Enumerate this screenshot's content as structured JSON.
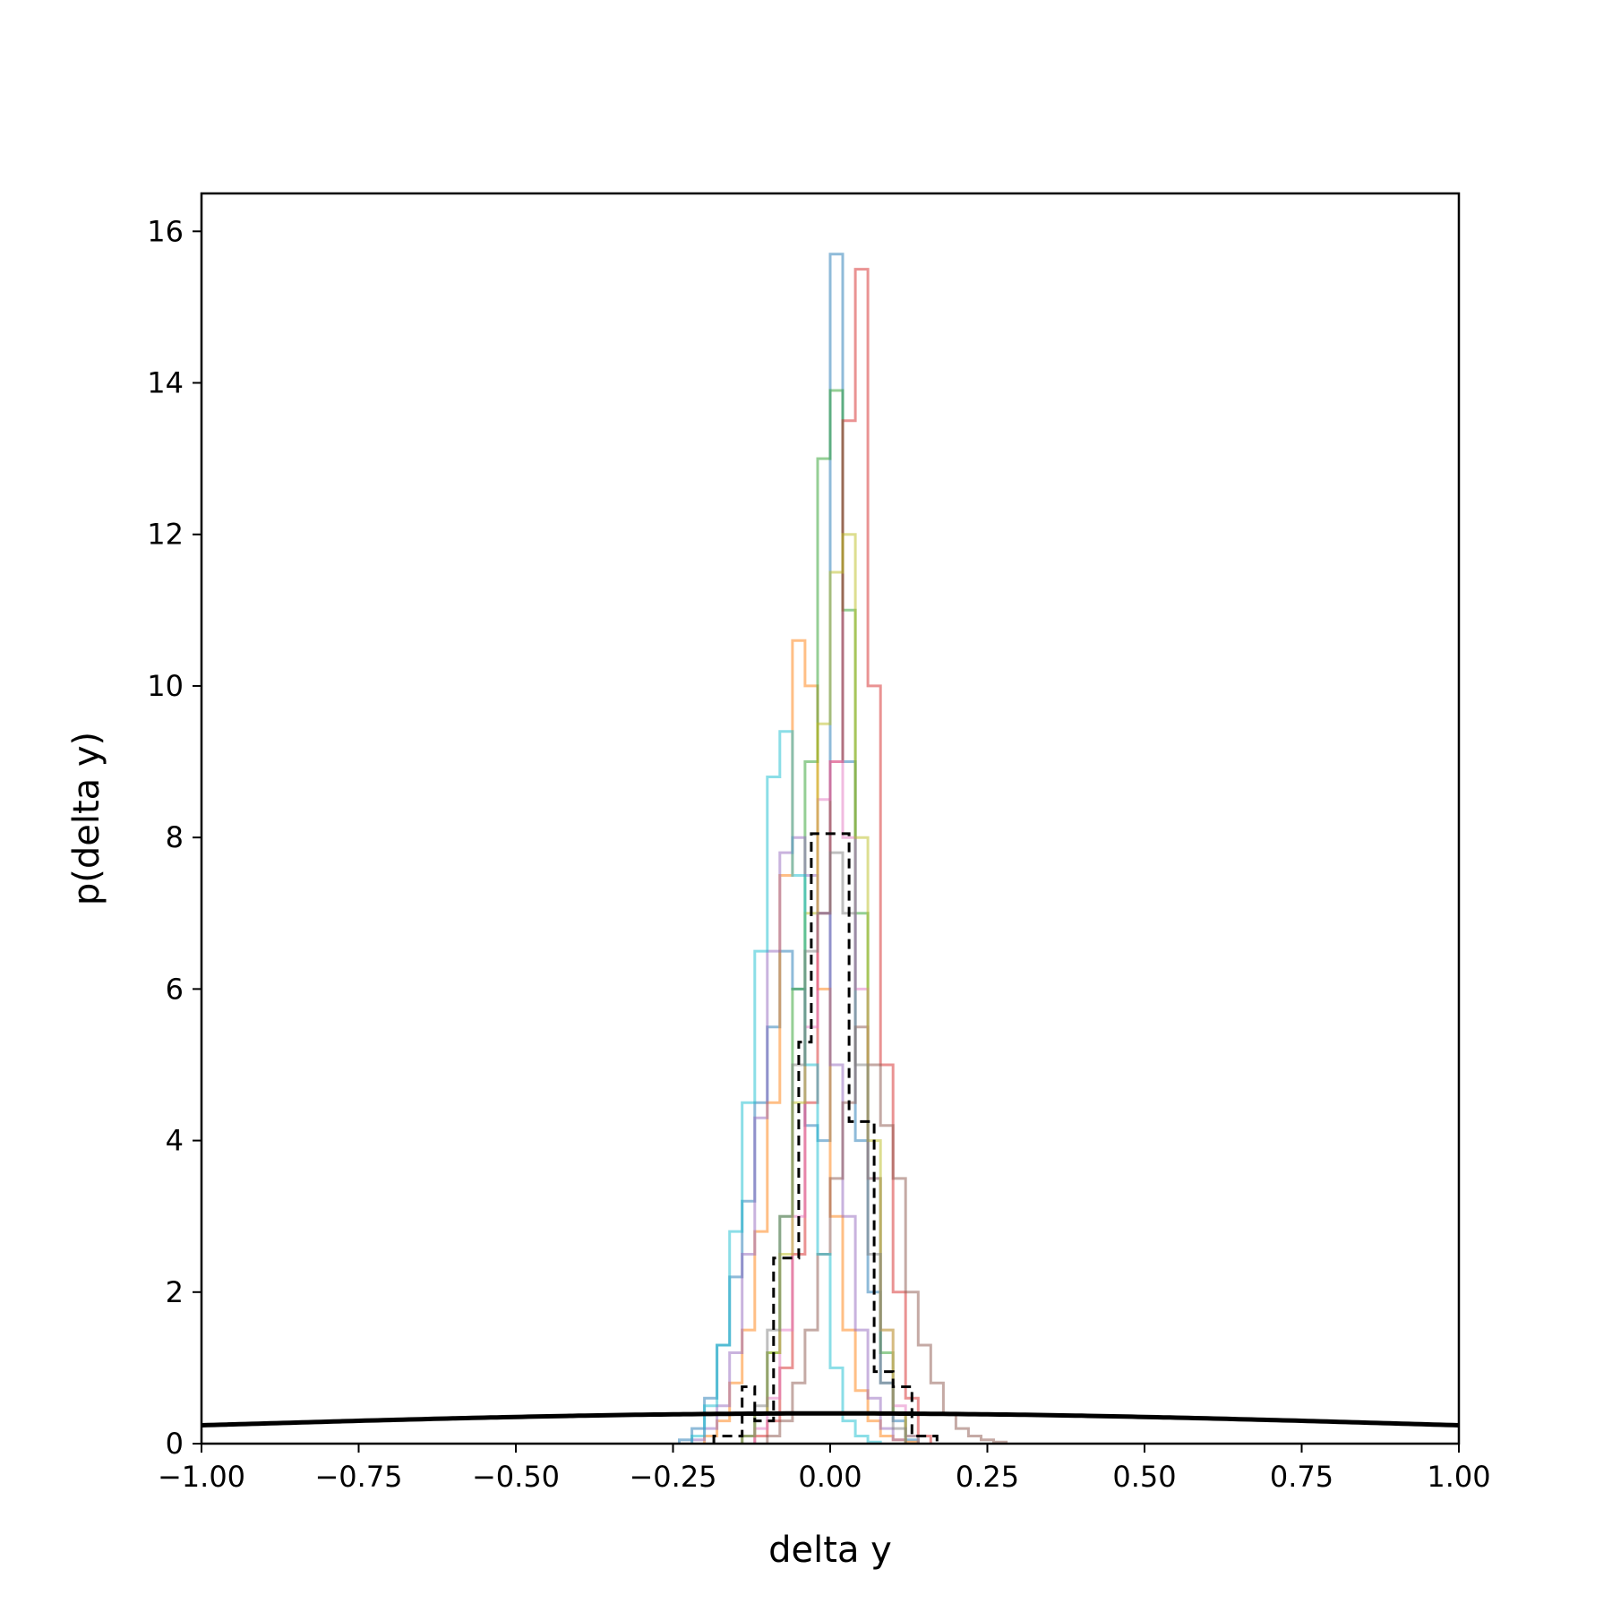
{
  "chart_data": {
    "type": "histogram",
    "xlabel": "delta y",
    "ylabel": "p(delta y)",
    "xlim": [
      -1.0,
      1.0
    ],
    "ylim": [
      0,
      16.5
    ],
    "x_ticks": [
      -1.0,
      -0.75,
      -0.5,
      -0.25,
      0.0,
      0.25,
      0.5,
      0.75,
      1.0
    ],
    "x_tick_labels": [
      "−1.00",
      "−0.75",
      "−0.50",
      "−0.25",
      "0.00",
      "0.25",
      "0.50",
      "0.75",
      "1.00"
    ],
    "y_ticks": [
      0,
      2,
      4,
      6,
      8,
      10,
      12,
      14,
      16
    ],
    "y_tick_labels": [
      "0",
      "2",
      "4",
      "6",
      "8",
      "10",
      "12",
      "14",
      "16"
    ],
    "grid": false,
    "legend": "none",
    "series": [
      {
        "color": "#1f77b4",
        "opacity": 0.5,
        "edges": [
          -0.24,
          -0.22,
          -0.2,
          -0.18,
          -0.16,
          -0.14,
          -0.12,
          -0.1,
          -0.08,
          -0.06,
          -0.04,
          -0.02,
          0.0,
          0.02,
          0.04,
          0.06,
          0.08,
          0.1,
          0.12,
          0.14
        ],
        "values": [
          0.05,
          0.2,
          0.6,
          1.3,
          2.2,
          3.2,
          4.5,
          5.5,
          6.5,
          6.0,
          4.2,
          4.0,
          15.7,
          9.0,
          4.0,
          2.0,
          0.8,
          0.3,
          0.05
        ]
      },
      {
        "color": "#ff7f0e",
        "opacity": 0.5,
        "edges": [
          -0.2,
          -0.18,
          -0.16,
          -0.14,
          -0.12,
          -0.1,
          -0.08,
          -0.06,
          -0.04,
          -0.02,
          0.0,
          0.02,
          0.04,
          0.06,
          0.08,
          0.1,
          0.12,
          0.14
        ],
        "values": [
          0.1,
          0.3,
          0.8,
          1.5,
          2.8,
          4.5,
          7.5,
          10.6,
          10.0,
          6.0,
          3.0,
          1.5,
          0.7,
          0.3,
          0.1,
          0.05,
          0.02
        ]
      },
      {
        "color": "#2ca02c",
        "opacity": 0.5,
        "edges": [
          -0.14,
          -0.12,
          -0.1,
          -0.08,
          -0.06,
          -0.04,
          -0.02,
          0.0,
          0.02,
          0.04,
          0.06,
          0.08,
          0.1,
          0.12,
          0.14
        ],
        "values": [
          0.1,
          0.4,
          1.2,
          3.0,
          6.0,
          9.0,
          13.0,
          13.9,
          11.0,
          7.0,
          3.5,
          1.2,
          0.4,
          0.1
        ]
      },
      {
        "color": "#d62728",
        "opacity": 0.5,
        "edges": [
          -0.12,
          -0.1,
          -0.08,
          -0.06,
          -0.04,
          -0.02,
          0.0,
          0.02,
          0.04,
          0.06,
          0.08,
          0.1,
          0.12,
          0.14,
          0.16
        ],
        "values": [
          0.1,
          0.3,
          1.0,
          2.5,
          4.5,
          7.0,
          9.0,
          13.5,
          15.5,
          10.0,
          5.0,
          2.0,
          0.6,
          0.1
        ]
      },
      {
        "color": "#9467bd",
        "opacity": 0.5,
        "edges": [
          -0.22,
          -0.2,
          -0.18,
          -0.16,
          -0.14,
          -0.12,
          -0.1,
          -0.08,
          -0.06,
          -0.04,
          -0.02,
          0.0,
          0.02,
          0.04,
          0.06,
          0.08,
          0.1,
          0.12
        ],
        "values": [
          0.05,
          0.2,
          0.5,
          1.2,
          2.5,
          4.3,
          6.5,
          7.8,
          8.0,
          7.5,
          7.0,
          5.0,
          3.0,
          1.5,
          0.6,
          0.2,
          0.05
        ]
      },
      {
        "color": "#8c564b",
        "opacity": 0.5,
        "edges": [
          -0.1,
          -0.08,
          -0.06,
          -0.04,
          -0.02,
          0.0,
          0.02,
          0.04,
          0.06,
          0.08,
          0.1,
          0.12,
          0.14,
          0.16,
          0.18,
          0.2,
          0.22,
          0.24,
          0.26,
          0.28
        ],
        "values": [
          0.1,
          0.3,
          0.8,
          1.5,
          2.5,
          3.5,
          4.5,
          5.5,
          5.0,
          4.2,
          3.5,
          2.0,
          1.3,
          0.8,
          0.4,
          0.2,
          0.1,
          0.05,
          0.02
        ]
      },
      {
        "color": "#e377c2",
        "opacity": 0.5,
        "edges": [
          -0.12,
          -0.1,
          -0.08,
          -0.06,
          -0.04,
          -0.02,
          0.0,
          0.02,
          0.04,
          0.06,
          0.08,
          0.1,
          0.12,
          0.14
        ],
        "values": [
          0.2,
          0.6,
          1.5,
          3.0,
          5.5,
          8.5,
          9.0,
          8.0,
          6.0,
          3.5,
          1.5,
          0.5,
          0.1
        ]
      },
      {
        "color": "#bcbd22",
        "opacity": 0.5,
        "edges": [
          -0.14,
          -0.12,
          -0.1,
          -0.08,
          -0.06,
          -0.04,
          -0.02,
          0.0,
          0.02,
          0.04,
          0.06,
          0.08,
          0.1,
          0.12
        ],
        "values": [
          0.1,
          0.4,
          1.2,
          2.5,
          4.5,
          7.0,
          9.5,
          11.5,
          12.0,
          8.0,
          4.0,
          1.5,
          0.4
        ]
      },
      {
        "color": "#17becf",
        "opacity": 0.5,
        "edges": [
          -0.22,
          -0.2,
          -0.18,
          -0.16,
          -0.14,
          -0.12,
          -0.1,
          -0.08,
          -0.06,
          -0.04,
          -0.02,
          0.0,
          0.02,
          0.04,
          0.06,
          0.08
        ],
        "values": [
          0.1,
          0.5,
          1.3,
          2.8,
          4.5,
          6.5,
          8.8,
          9.4,
          7.5,
          5.0,
          2.5,
          1.0,
          0.3,
          0.1,
          0.02
        ]
      },
      {
        "color": "#7f7f7f",
        "opacity": 0.5,
        "edges": [
          -0.14,
          -0.12,
          -0.1,
          -0.08,
          -0.06,
          -0.04,
          -0.02,
          0.0,
          0.02,
          0.04,
          0.06,
          0.08,
          0.1,
          0.12
        ],
        "values": [
          0.1,
          0.5,
          1.5,
          3.0,
          5.0,
          6.5,
          7.0,
          7.8,
          7.0,
          5.0,
          2.5,
          0.8,
          0.2
        ]
      }
    ],
    "dashed_series": {
      "color": "#000000",
      "edges": [
        -0.185,
        -0.14,
        -0.12,
        -0.09,
        -0.05,
        -0.03,
        -0.01,
        0.03,
        0.07,
        0.1,
        0.13,
        0.17
      ],
      "values": [
        0.1,
        0.75,
        0.3,
        2.45,
        5.3,
        8.05,
        8.05,
        4.25,
        0.95,
        0.75,
        0.1
      ]
    },
    "normal_curve": {
      "color": "#000000",
      "mean": 0,
      "std": 1
    }
  }
}
